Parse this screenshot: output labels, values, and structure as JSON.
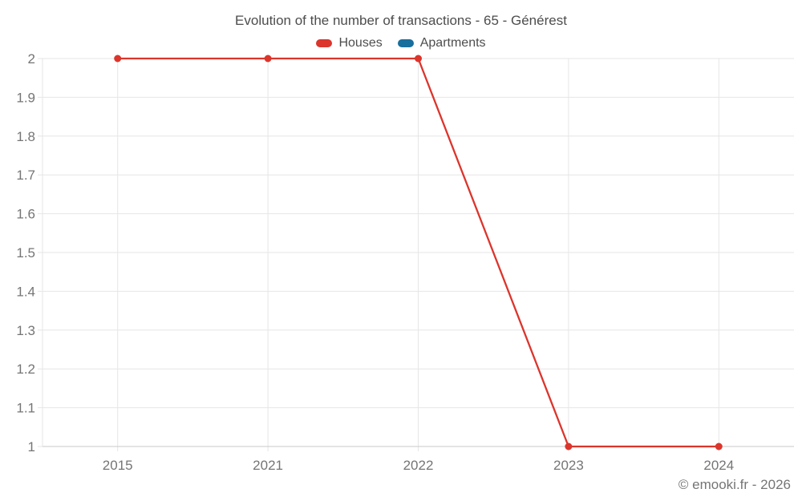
{
  "chart_data": {
    "type": "line",
    "title": "Evolution of the number of transactions - 65 - Générest",
    "categories": [
      "2015",
      "2021",
      "2022",
      "2023",
      "2024"
    ],
    "series": [
      {
        "name": "Houses",
        "color": "#db352c",
        "values": [
          2,
          2,
          2,
          1,
          1
        ],
        "marker": "circle"
      },
      {
        "name": "Apartments",
        "color": "#176f9e",
        "values": []
      }
    ],
    "ylim": [
      1,
      2
    ],
    "y_ticks": [
      {
        "value": 1,
        "label": "1"
      },
      {
        "value": 1.1,
        "label": "1.1"
      },
      {
        "value": 1.2,
        "label": "1.2"
      },
      {
        "value": 1.3,
        "label": "1.3"
      },
      {
        "value": 1.4,
        "label": "1.4"
      },
      {
        "value": 1.5,
        "label": "1.5"
      },
      {
        "value": 1.6,
        "label": "1.6"
      },
      {
        "value": 1.7,
        "label": "1.7"
      },
      {
        "value": 1.8,
        "label": "1.8"
      },
      {
        "value": 1.9,
        "label": "1.9"
      },
      {
        "value": 2,
        "label": "2"
      }
    ],
    "xlabel": "",
    "ylabel": "",
    "grid": true,
    "legend_position": "top"
  },
  "footer": {
    "copyright": "© emooki.fr - 2026"
  },
  "theme": {
    "background": "#ffffff",
    "title_color": "#4d4d4d",
    "legend_text_color": "#4d4d4d",
    "tick_label_color": "#757575",
    "grid_color": "#e6e6e6",
    "axis_line_color": "#c9c9c9"
  }
}
